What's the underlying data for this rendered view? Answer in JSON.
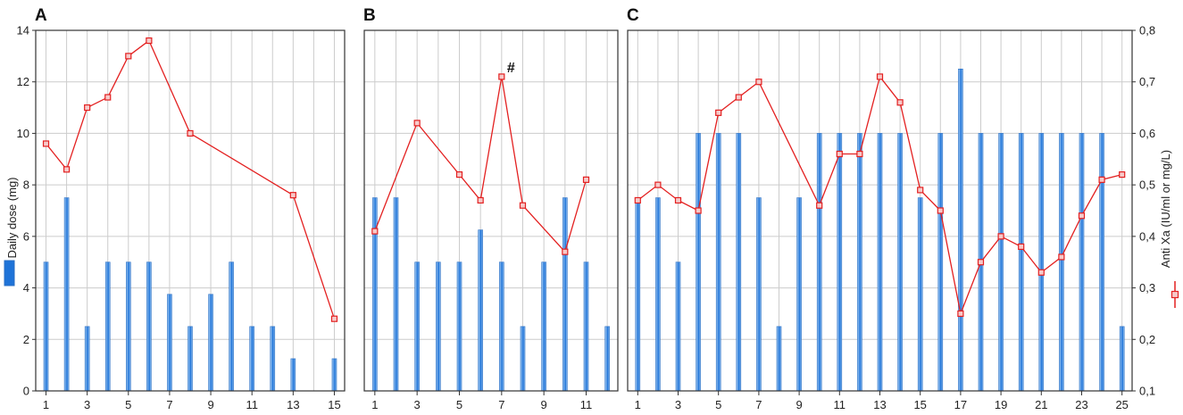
{
  "colors": {
    "bar_fill_light": "#a9cff5",
    "bar_fill_dark": "#1e73d8",
    "bar_edge": "#2a6fc4",
    "line": "#e32020",
    "marker_fill": "#f6c9c9",
    "grid": "#cccccc",
    "frame": "#333333"
  },
  "legend": {
    "bar_icon": "blue-bar-swatch",
    "line_icon": "red-square-line-swatch"
  },
  "chart_data": [
    {
      "panel": "A",
      "type": "bar+line",
      "xlim": [
        0.5,
        15.5
      ],
      "xticks": [
        1,
        3,
        5,
        7,
        9,
        11,
        13,
        15
      ],
      "bars": {
        "x": [
          1,
          2,
          3,
          4,
          5,
          6,
          7,
          8,
          9,
          10,
          11,
          12,
          13,
          15
        ],
        "values": [
          5,
          7.5,
          2.5,
          5,
          5,
          5,
          3.75,
          2.5,
          3.75,
          5,
          2.5,
          2.5,
          1.25,
          1.25
        ]
      },
      "line": {
        "x": [
          1,
          2,
          3,
          4,
          5,
          6,
          8,
          13,
          15
        ],
        "values": [
          0.58,
          0.53,
          0.65,
          0.67,
          0.75,
          0.78,
          0.6,
          0.48,
          0.24
        ]
      },
      "annotations": []
    },
    {
      "panel": "B",
      "type": "bar+line",
      "xlim": [
        0.5,
        12.5
      ],
      "xticks": [
        1,
        3,
        5,
        7,
        9,
        11
      ],
      "bars": {
        "x": [
          1,
          2,
          3,
          4,
          5,
          6,
          7,
          8,
          9,
          10,
          11,
          12
        ],
        "values": [
          7.5,
          7.5,
          5,
          5,
          5,
          6.25,
          5,
          2.5,
          5,
          7.5,
          5,
          2.5
        ]
      },
      "line": {
        "x": [
          1,
          3,
          5,
          6,
          7,
          8,
          10,
          11
        ],
        "values": [
          0.41,
          0.62,
          0.52,
          0.47,
          0.71,
          0.46,
          0.37,
          0.51
        ]
      },
      "annotations": [
        {
          "x": 7,
          "y": 0.71,
          "text": "#"
        }
      ]
    },
    {
      "panel": "C",
      "type": "bar+line",
      "xlim": [
        0.5,
        25.5
      ],
      "xticks": [
        1,
        3,
        5,
        7,
        9,
        11,
        13,
        15,
        17,
        19,
        21,
        23,
        25
      ],
      "bars": {
        "x": [
          1,
          2,
          3,
          4,
          5,
          6,
          7,
          8,
          9,
          10,
          11,
          12,
          13,
          14,
          15,
          16,
          17,
          18,
          19,
          20,
          21,
          22,
          23,
          24,
          25
        ],
        "values": [
          7.5,
          7.5,
          5,
          10,
          10,
          10,
          7.5,
          2.5,
          7.5,
          10,
          10,
          10,
          10,
          10,
          7.5,
          10,
          12.5,
          10,
          10,
          10,
          10,
          10,
          10,
          10,
          2.5
        ]
      },
      "line": {
        "x": [
          1,
          2,
          3,
          4,
          5,
          6,
          7,
          10,
          11,
          12,
          13,
          14,
          15,
          16,
          17,
          18,
          19,
          20,
          21,
          22,
          23,
          24,
          25
        ],
        "values": [
          0.47,
          0.5,
          0.47,
          0.45,
          0.64,
          0.67,
          0.7,
          0.46,
          0.56,
          0.56,
          0.71,
          0.66,
          0.49,
          0.45,
          0.25,
          0.35,
          0.4,
          0.38,
          0.33,
          0.36,
          0.44,
          0.51,
          0.52
        ]
      },
      "annotations": []
    }
  ],
  "axes": {
    "left": {
      "label": "Daily dose (mg)",
      "ylim": [
        0,
        14
      ],
      "ticks": [
        "0",
        "2",
        "4",
        "6",
        "8",
        "10",
        "12",
        "14"
      ]
    },
    "right": {
      "label": "Anti Xa (IU/ml or mg/L)",
      "ylim": [
        0.1,
        0.8
      ],
      "ticks": [
        "0,1",
        "0,2",
        "0,3",
        "0,4",
        "0,5",
        "0,6",
        "0,7",
        "0,8"
      ]
    },
    "grid": true
  }
}
